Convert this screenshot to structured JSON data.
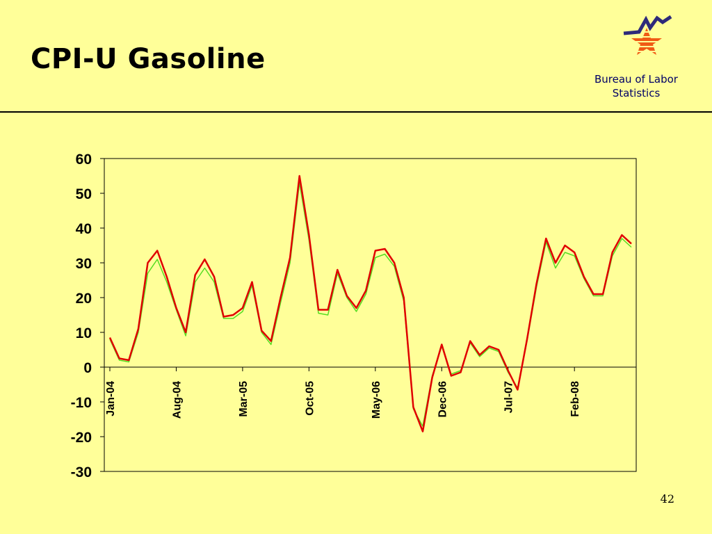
{
  "slide": {
    "title": "CPI-U Gasoline",
    "org_name": "Bureau of Labor Statistics",
    "page_number": "42"
  },
  "colors": {
    "background": "#FFFF99",
    "series_red": "#E00000",
    "series_green": "#55DD22",
    "logo_blue": "#2E2A7A",
    "logo_orange": "#F05A14",
    "org_text": "#000066"
  },
  "chart_data": {
    "type": "line",
    "title": "",
    "xlabel": "",
    "ylabel": "",
    "ylim": [
      -30,
      60
    ],
    "yticks": [
      60,
      50,
      40,
      30,
      20,
      10,
      0,
      -10,
      -20,
      -30
    ],
    "x_tick_labels": [
      "Jan-04",
      "Aug-04",
      "Mar-05",
      "Oct-05",
      "May-06",
      "Dec-06",
      "Jul-07",
      "Feb-08"
    ],
    "grid": false,
    "legend": "none",
    "series": [
      {
        "color": "#E00000",
        "values": [
          8.5,
          2.5,
          2.0,
          11.0,
          30.0,
          33.5,
          26.0,
          17.0,
          10.0,
          26.5,
          31.0,
          26.0,
          14.5,
          15.0,
          17.0,
          24.5,
          10.5,
          7.5,
          20.0,
          31.5,
          55.0,
          38.0,
          16.5,
          16.5,
          28.0,
          20.5,
          17.0,
          22.0,
          33.5,
          34.0,
          30.0,
          20.0,
          -11.5,
          -18.5,
          -3.0,
          6.5,
          -2.5,
          -1.5,
          7.5,
          3.5,
          6.0,
          5.0,
          -1.0,
          -6.5,
          8.0,
          24.0,
          37.0,
          30.0,
          35.0,
          33.0,
          26.0,
          21.0,
          21.0,
          33.0,
          38.0,
          35.5
        ]
      },
      {
        "color": "#55DD22",
        "values": [
          8.0,
          2.0,
          1.5,
          10.0,
          27.0,
          31.0,
          24.5,
          16.5,
          9.0,
          24.5,
          28.5,
          24.5,
          14.0,
          14.0,
          16.0,
          23.5,
          10.0,
          6.5,
          18.5,
          30.0,
          53.0,
          36.5,
          15.5,
          15.0,
          27.0,
          20.0,
          16.0,
          21.0,
          31.5,
          32.5,
          29.0,
          19.0,
          -12.0,
          -17.0,
          -2.5,
          6.0,
          -2.0,
          -1.0,
          7.0,
          3.0,
          5.5,
          4.5,
          -1.5,
          -6.0,
          7.5,
          23.0,
          36.0,
          28.5,
          33.0,
          32.0,
          25.5,
          20.5,
          20.5,
          32.0,
          37.0,
          34.5
        ]
      }
    ]
  }
}
